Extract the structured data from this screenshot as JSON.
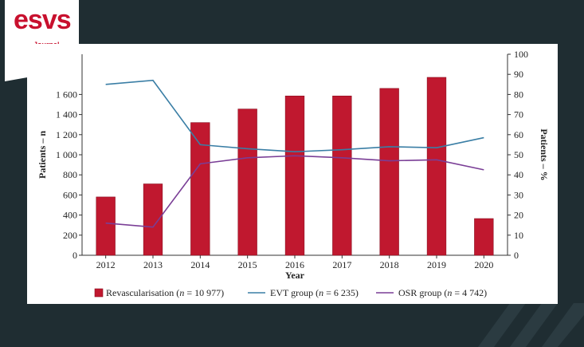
{
  "brand": {
    "logo_text": "esvs",
    "logo_sub": "Journal",
    "color": "#c8102e"
  },
  "colors": {
    "background": "#1f2d32",
    "bar": "#c0182f",
    "evt": "#3a7ea5",
    "osr": "#7a3e96"
  },
  "chart_data": {
    "type": "bar",
    "xlabel": "Year",
    "ylabel_left": "Patients – n",
    "ylabel_right": "Patients – %",
    "categories": [
      "2012",
      "2013",
      "2014",
      "2015",
      "2016",
      "2017",
      "2018",
      "2019",
      "2020"
    ],
    "ylim_left": [
      0,
      2000
    ],
    "yticks_left": [
      0,
      200,
      400,
      600,
      800,
      1000,
      1200,
      1400,
      1600
    ],
    "ytick_labels_left": [
      "0",
      "200",
      "400",
      "600",
      "800",
      "1 000",
      "1 200",
      "1 400",
      "1 600"
    ],
    "ylim_right": [
      0,
      100
    ],
    "yticks_right": [
      0,
      10,
      20,
      30,
      40,
      50,
      60,
      70,
      80,
      90,
      100
    ],
    "grid": false,
    "legend_position": "bottom",
    "series": [
      {
        "name": "Revascularisation (n = 10 977)",
        "kind": "bar",
        "axis": "left",
        "values": [
          580,
          710,
          1320,
          1455,
          1585,
          1585,
          1660,
          1770,
          365
        ]
      },
      {
        "name": "EVT group (n = 6 235)",
        "kind": "line",
        "axis": "right",
        "values": [
          85,
          87,
          55,
          53,
          51.5,
          52.5,
          54,
          53.5,
          58.5
        ]
      },
      {
        "name": "OSR group (n = 4 742)",
        "kind": "line",
        "axis": "right",
        "values": [
          16,
          14,
          45.5,
          48.5,
          49.5,
          48.5,
          47,
          47.5,
          42.5
        ]
      }
    ],
    "legend": [
      {
        "label": "Revascularisation (",
        "italic": "n",
        "rest": " = 10 977)"
      },
      {
        "label": "EVT group (",
        "italic": "n",
        "rest": " = 6 235)"
      },
      {
        "label": "OSR group (",
        "italic": "n",
        "rest": " = 4 742)"
      }
    ]
  }
}
